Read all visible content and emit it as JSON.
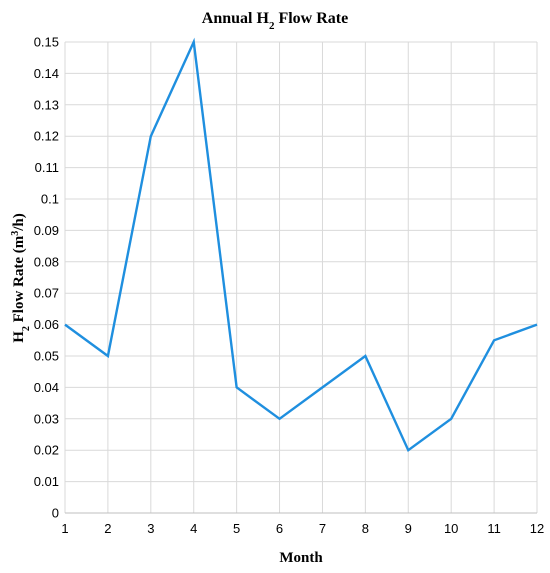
{
  "chart_data": {
    "type": "line",
    "title": "Annual H2 Flow Rate",
    "title_parts": {
      "prefix": "Annual H",
      "subscript": "2",
      "suffix": " Flow Rate"
    },
    "xlabel": "Month",
    "ylabel": "H2 Flow Rate (m3/h)",
    "ylabel_parts": {
      "h": "H",
      "sub": "2",
      "mid": " Flow Rate (m",
      "sup": "3",
      "end": "/h)"
    },
    "x": [
      1,
      2,
      3,
      4,
      5,
      6,
      7,
      8,
      9,
      10,
      11,
      12
    ],
    "series": [
      {
        "values": [
          0.06,
          0.05,
          0.12,
          0.15,
          0.04,
          0.03,
          0.04,
          0.05,
          0.02,
          0.03,
          0.055,
          0.06
        ],
        "color": "#1f8fdf"
      }
    ],
    "xlim": [
      1,
      12
    ],
    "ylim": [
      0,
      0.15
    ],
    "y_ticks": [
      0,
      0.01,
      0.02,
      0.03,
      0.04,
      0.05,
      0.06,
      0.07,
      0.08,
      0.09,
      0.1,
      0.11,
      0.12,
      0.13,
      0.14,
      0.15
    ],
    "y_tick_labels": [
      "0",
      "0.01",
      "0.02",
      "0.03",
      "0.04",
      "0.05",
      "0.06",
      "0.07",
      "0.08",
      "0.09",
      "0.1",
      "0.11",
      "0.12",
      "0.13",
      "0.14",
      "0.15"
    ],
    "x_tick_labels": [
      "1",
      "2",
      "3",
      "4",
      "5",
      "6",
      "7",
      "8",
      "9",
      "10",
      "11",
      "12"
    ],
    "grid": true,
    "legend": "none"
  }
}
